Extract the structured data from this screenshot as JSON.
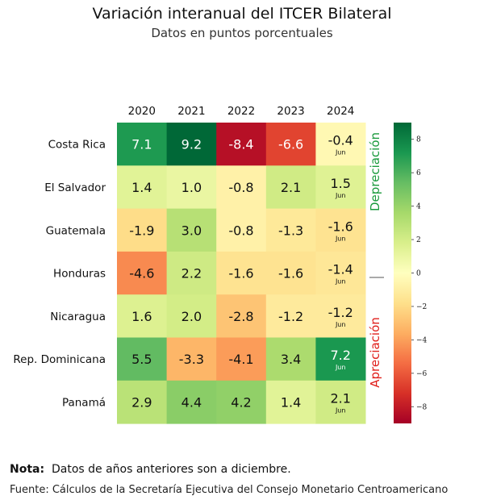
{
  "chart_data": {
    "type": "heatmap",
    "title": "Variación interanual del ITCER Bilateral",
    "subtitle": "Datos en puntos porcentuales",
    "columns": [
      "2020",
      "2021",
      "2022",
      "2023",
      "2024"
    ],
    "rows": [
      "Costa Rica",
      "El Salvador",
      "Guatemala",
      "Honduras",
      "Nicaragua",
      "Rep. Dominicana",
      "Panamá"
    ],
    "values": [
      [
        7.1,
        9.2,
        -8.4,
        -6.6,
        -0.4
      ],
      [
        1.4,
        1.0,
        -0.8,
        2.1,
        1.5
      ],
      [
        -1.9,
        3.0,
        -0.8,
        -1.3,
        -1.6
      ],
      [
        -4.6,
        2.2,
        -1.6,
        -1.6,
        -1.4
      ],
      [
        1.6,
        2.0,
        -2.8,
        -1.2,
        -1.2
      ],
      [
        5.5,
        -3.3,
        -4.1,
        3.4,
        7.2
      ],
      [
        2.9,
        4.4,
        4.2,
        1.4,
        2.1
      ]
    ],
    "labels": [
      [
        "7.1",
        "9.2",
        "-8.4",
        "-6.6",
        "-0.4"
      ],
      [
        "1.4",
        "1.0",
        "-0.8",
        "2.1",
        "1.5"
      ],
      [
        "-1.9",
        "3.0",
        "-0.8",
        "-1.3",
        "-1.6"
      ],
      [
        "-4.6",
        "2.2",
        "-1.6",
        "-1.6",
        "-1.4"
      ],
      [
        "1.6",
        "2.0",
        "-2.8",
        "-1.2",
        "-1.2"
      ],
      [
        "5.5",
        "-3.3",
        "-4.1",
        "3.4",
        "7.2"
      ],
      [
        "2.9",
        "4.4",
        "4.2",
        "1.4",
        "2.1"
      ]
    ],
    "last_column_sublabel": "Jun",
    "colorbar": {
      "range": [
        -9,
        9
      ],
      "ticks": [
        8,
        6,
        4,
        2,
        0,
        -2,
        -4,
        -6,
        -8
      ],
      "tick_labels": [
        "8",
        "6",
        "4",
        "2",
        "0",
        "−2",
        "−4",
        "−6",
        "−8"
      ],
      "colormap": "RdYlGn"
    },
    "side_labels": {
      "top": "Depreciación",
      "top_color": "#1a9a3c",
      "bottom": "Apreciación",
      "bottom_color": "#e0201c"
    }
  },
  "note_label": "Nota:",
  "note_text": "Datos de años anteriores son a diciembre.",
  "source_text": "Fuente: Cálculos de la Secretaría Ejecutiva del Consejo Monetario Centroamericano"
}
